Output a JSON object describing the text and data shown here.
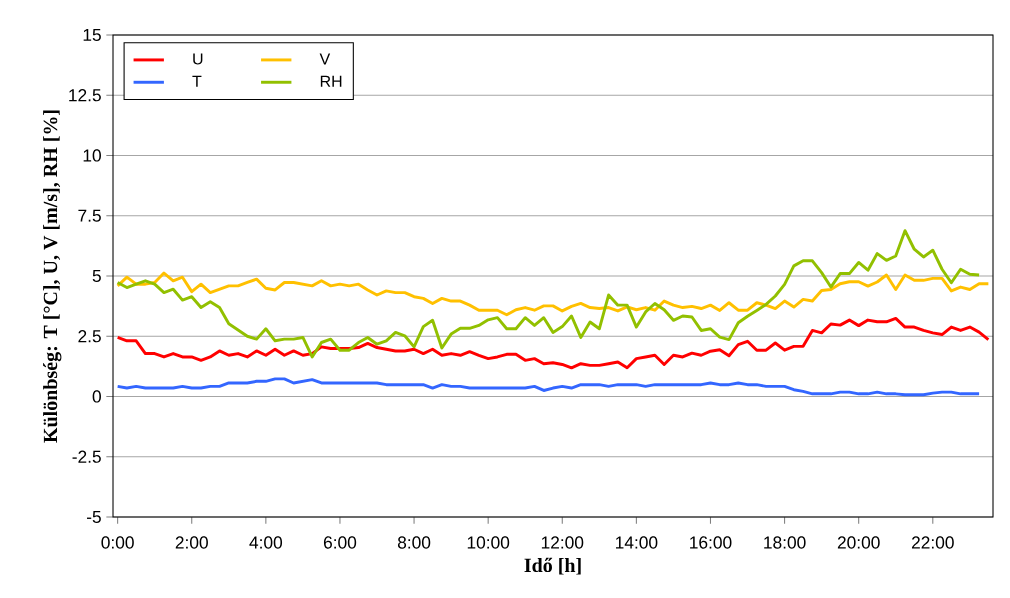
{
  "chart_data": {
    "type": "line",
    "xlabel": "Idő [h]",
    "ylabel": "Különbség: T [°C], U, V [m/s], RH [%]",
    "x": [
      0,
      0.25,
      0.5,
      0.75,
      1,
      1.25,
      1.5,
      1.75,
      2,
      2.25,
      2.5,
      2.75,
      3,
      3.25,
      3.5,
      3.75,
      4,
      4.25,
      4.5,
      4.75,
      5,
      5.25,
      5.5,
      5.75,
      6,
      6.25,
      6.5,
      6.75,
      7,
      7.25,
      7.5,
      7.75,
      8,
      8.25,
      8.5,
      8.75,
      9,
      9.25,
      9.5,
      9.75,
      10,
      10.25,
      10.5,
      10.75,
      11,
      11.25,
      11.5,
      11.75,
      12,
      12.25,
      12.5,
      12.75,
      13,
      13.25,
      13.5,
      13.75,
      14,
      14.25,
      14.5,
      14.75,
      15,
      15.25,
      15.5,
      15.75,
      16,
      16.25,
      16.5,
      16.75,
      17,
      17.25,
      17.5,
      17.75,
      18,
      18.25,
      18.5,
      18.75,
      19,
      19.25,
      19.5,
      19.75,
      20,
      20.25,
      20.5,
      20.75,
      21,
      21.25,
      21.5,
      21.75,
      22,
      22.25,
      22.5,
      22.75,
      23,
      23.25,
      23.5
    ],
    "xlim": [
      -0.125,
      23.625
    ],
    "xticks": [
      {
        "value": 0,
        "label": "0:00"
      },
      {
        "value": 2,
        "label": "2:00"
      },
      {
        "value": 4,
        "label": "4:00"
      },
      {
        "value": 6,
        "label": "6:00"
      },
      {
        "value": 8,
        "label": "8:00"
      },
      {
        "value": 10,
        "label": "10:00"
      },
      {
        "value": 12,
        "label": "12:00"
      },
      {
        "value": 14,
        "label": "14:00"
      },
      {
        "value": 16,
        "label": "16:00"
      },
      {
        "value": 18,
        "label": "18:00"
      },
      {
        "value": 20,
        "label": "20:00"
      },
      {
        "value": 22,
        "label": "22:00"
      }
    ],
    "ylim": [
      -5,
      15
    ],
    "yticks": [
      -5,
      -2.5,
      0,
      2.5,
      5,
      7.5,
      10,
      12.5,
      15
    ],
    "grid": "y",
    "legend": "top left",
    "marker": "none",
    "series": [
      {
        "name": "U",
        "color": "#ff0000",
        "values": [
          2.45,
          2.31,
          2.31,
          1.78,
          1.78,
          1.64,
          1.78,
          1.64,
          1.64,
          1.5,
          1.64,
          1.89,
          1.71,
          1.78,
          1.64,
          1.89,
          1.71,
          1.96,
          1.71,
          1.89,
          1.71,
          1.78,
          2.06,
          1.99,
          1.99,
          1.99,
          2.03,
          2.2,
          2.03,
          1.96,
          1.89,
          1.89,
          1.96,
          1.78,
          1.96,
          1.71,
          1.78,
          1.71,
          1.86,
          1.71,
          1.57,
          1.64,
          1.75,
          1.75,
          1.5,
          1.57,
          1.36,
          1.4,
          1.33,
          1.19,
          1.36,
          1.29,
          1.29,
          1.36,
          1.43,
          1.19,
          1.57,
          1.64,
          1.71,
          1.33,
          1.71,
          1.64,
          1.8,
          1.71,
          1.88,
          1.94,
          1.69,
          2.15,
          2.29,
          1.92,
          1.92,
          2.22,
          1.92,
          2.08,
          2.08,
          2.74,
          2.64,
          3.01,
          2.96,
          3.17,
          2.94,
          3.17,
          3.1,
          3.1,
          3.24,
          2.88,
          2.88,
          2.74,
          2.64,
          2.57,
          2.88,
          2.74,
          2.88,
          2.67,
          2.36
        ]
      },
      {
        "name": "V",
        "color": "#ffc000",
        "values": [
          4.59,
          4.95,
          4.66,
          4.66,
          4.73,
          5.12,
          4.8,
          4.95,
          4.35,
          4.66,
          4.31,
          4.45,
          4.59,
          4.59,
          4.73,
          4.87,
          4.49,
          4.42,
          4.73,
          4.73,
          4.66,
          4.59,
          4.8,
          4.59,
          4.66,
          4.59,
          4.66,
          4.42,
          4.21,
          4.38,
          4.31,
          4.31,
          4.14,
          4.07,
          3.86,
          4.07,
          3.96,
          3.96,
          3.79,
          3.58,
          3.58,
          3.58,
          3.39,
          3.6,
          3.69,
          3.58,
          3.76,
          3.76,
          3.55,
          3.74,
          3.86,
          3.69,
          3.65,
          3.69,
          3.55,
          3.72,
          3.6,
          3.69,
          3.58,
          3.96,
          3.79,
          3.69,
          3.74,
          3.65,
          3.79,
          3.57,
          3.89,
          3.58,
          3.58,
          3.89,
          3.79,
          3.65,
          3.96,
          3.71,
          4.03,
          3.96,
          4.4,
          4.44,
          4.68,
          4.76,
          4.76,
          4.58,
          4.75,
          5.04,
          4.44,
          5.04,
          4.82,
          4.82,
          4.9,
          4.9,
          4.38,
          4.54,
          4.44,
          4.68,
          4.68
        ]
      },
      {
        "name": "T",
        "color": "#3366ff",
        "values": [
          0.42,
          0.35,
          0.42,
          0.35,
          0.35,
          0.35,
          0.35,
          0.42,
          0.35,
          0.35,
          0.42,
          0.42,
          0.56,
          0.56,
          0.56,
          0.63,
          0.63,
          0.73,
          0.73,
          0.56,
          0.63,
          0.7,
          0.56,
          0.56,
          0.56,
          0.56,
          0.56,
          0.56,
          0.56,
          0.49,
          0.49,
          0.49,
          0.49,
          0.49,
          0.35,
          0.49,
          0.42,
          0.42,
          0.35,
          0.35,
          0.35,
          0.35,
          0.35,
          0.35,
          0.35,
          0.42,
          0.25,
          0.35,
          0.42,
          0.35,
          0.49,
          0.49,
          0.49,
          0.42,
          0.49,
          0.49,
          0.49,
          0.42,
          0.49,
          0.49,
          0.49,
          0.49,
          0.49,
          0.49,
          0.56,
          0.49,
          0.49,
          0.56,
          0.49,
          0.49,
          0.42,
          0.42,
          0.42,
          0.28,
          0.21,
          0.11,
          0.11,
          0.11,
          0.18,
          0.18,
          0.11,
          0.11,
          0.18,
          0.11,
          0.11,
          0.07,
          0.07,
          0.07,
          0.14,
          0.18,
          0.18,
          0.11,
          0.11,
          0.11,
          null
        ]
      },
      {
        "name": "RH",
        "color": "#92c000",
        "values": [
          4.73,
          4.52,
          4.66,
          4.8,
          4.66,
          4.31,
          4.45,
          4.0,
          4.14,
          3.69,
          3.93,
          3.69,
          3.02,
          2.76,
          2.5,
          2.38,
          2.81,
          2.31,
          2.38,
          2.38,
          2.45,
          1.64,
          2.24,
          2.38,
          1.92,
          1.92,
          2.24,
          2.45,
          2.17,
          2.31,
          2.66,
          2.52,
          2.06,
          2.9,
          3.16,
          2.01,
          2.59,
          2.83,
          2.83,
          2.95,
          3.18,
          3.27,
          2.81,
          2.81,
          3.27,
          2.95,
          3.27,
          2.66,
          2.9,
          3.34,
          2.45,
          3.09,
          2.81,
          4.21,
          3.79,
          3.79,
          2.88,
          3.51,
          3.86,
          3.6,
          3.16,
          3.34,
          3.3,
          2.74,
          2.81,
          2.46,
          2.36,
          3.06,
          3.33,
          3.57,
          3.82,
          4.17,
          4.65,
          5.42,
          5.63,
          5.63,
          5.14,
          4.54,
          5.1,
          5.1,
          5.56,
          5.24,
          5.93,
          5.65,
          5.83,
          6.88,
          6.11,
          5.79,
          6.07,
          5.28,
          4.72,
          5.28,
          5.07,
          5.04,
          null
        ]
      }
    ]
  }
}
